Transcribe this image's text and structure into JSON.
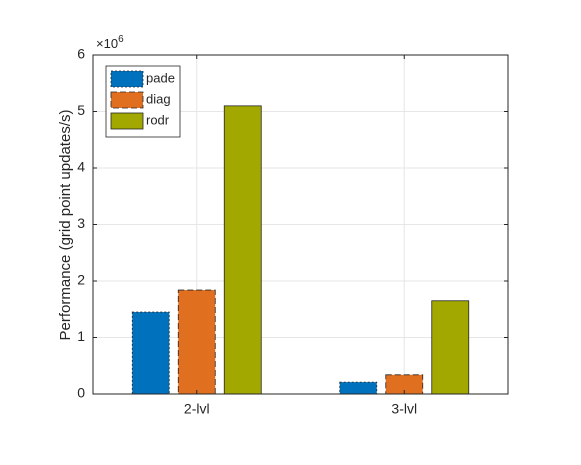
{
  "chart_data": {
    "type": "bar",
    "y_label": "Performance (grid point updates/s)",
    "y_multiplier": "×10",
    "y_multiplier_exponent": "6",
    "categories": [
      "2-lvl",
      "3-lvl"
    ],
    "series": [
      {
        "name": "pade",
        "color": "#0072bd",
        "linestyle": "dotted",
        "values": [
          1.45,
          0.21
        ]
      },
      {
        "name": "diag",
        "color": "#e07020",
        "linestyle": "dashed",
        "values": [
          1.84,
          0.34
        ]
      },
      {
        "name": "rodr",
        "color": "#a2a800",
        "linestyle": "solid",
        "values": [
          5.1,
          1.65
        ]
      }
    ],
    "ylim": [
      0,
      6
    ],
    "yticks": [
      0,
      1,
      2,
      3,
      4,
      5,
      6
    ],
    "grid": true,
    "legend": "top-left"
  }
}
